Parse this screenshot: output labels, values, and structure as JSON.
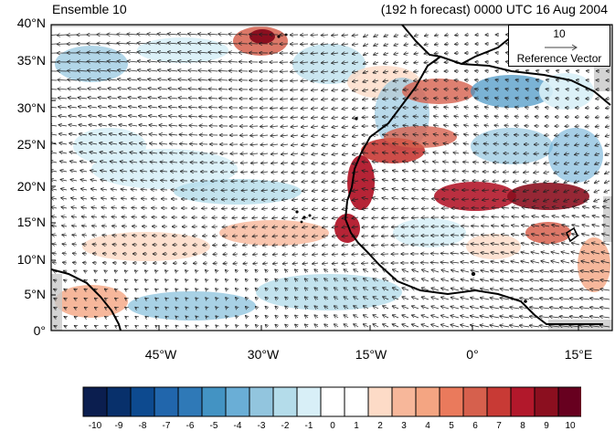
{
  "header": {
    "left_title": "Ensemble 10",
    "right_title": "(192 h forecast) 0000 UTC 16 Aug 2004"
  },
  "map": {
    "lat_labels": [
      "40°N",
      "35°N",
      "30°N",
      "25°N",
      "20°N",
      "15°N",
      "10°N",
      "5°N",
      "0°"
    ],
    "lon_labels": [
      "45°W",
      "30°W",
      "15°W",
      "0°",
      "15°E"
    ],
    "land_color": "#000000",
    "missing_color": "#c8c8c8"
  },
  "reference_vector": {
    "magnitude": "10",
    "label": "Reference Vector"
  },
  "colorbar": {
    "labels": [
      "-10",
      "-9",
      "-8",
      "-7",
      "-6",
      "-5",
      "-4",
      "-3",
      "-2",
      "-1",
      "0",
      "1",
      "2",
      "3",
      "4",
      "5",
      "6",
      "7",
      "8",
      "9",
      "10"
    ],
    "colors": [
      "#0b1e4f",
      "#08306b",
      "#0d4a8f",
      "#2166ac",
      "#2f79b7",
      "#4393c3",
      "#6aaed6",
      "#92c5de",
      "#b4dcea",
      "#d8eff7",
      "#ffffff",
      "#ffffff",
      "#fddbc7",
      "#f7b79a",
      "#f4a582",
      "#ea7a5c",
      "#d6604d",
      "#c83a35",
      "#b2182b",
      "#8b0f1f",
      "#67001f"
    ]
  }
}
